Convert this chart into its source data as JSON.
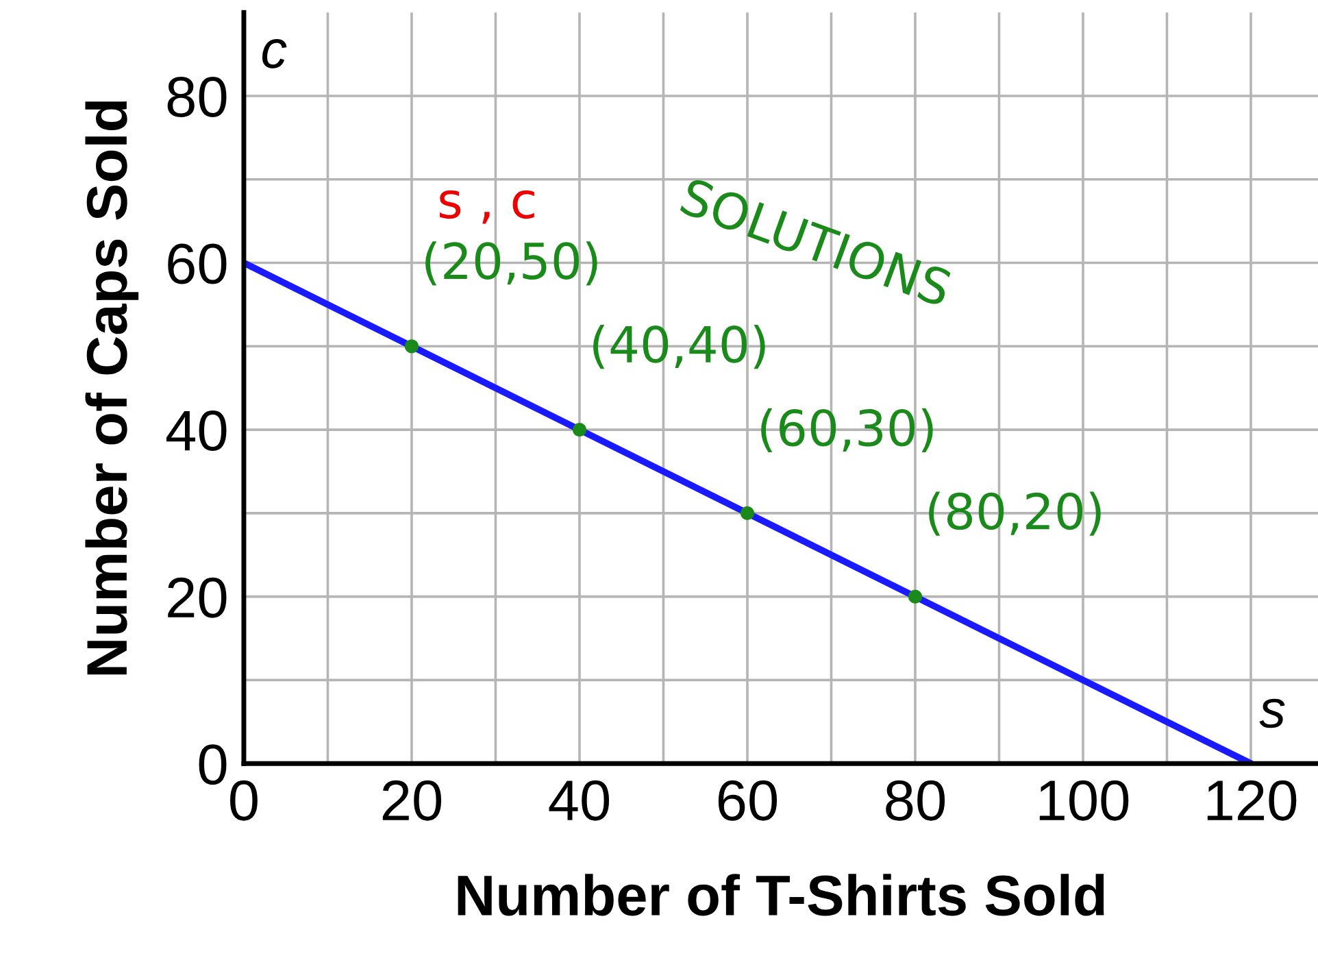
{
  "chart_data": {
    "type": "line",
    "xlabel": "Number of T-Shirts Sold",
    "ylabel": "Number of Caps Sold",
    "series": [
      {
        "color": "#1a1aff",
        "x": [
          0,
          120
        ],
        "values": [
          60,
          0
        ]
      },
      {
        "type": "scatter",
        "marker": "circle",
        "color": "#1a8a1a",
        "x": [
          20,
          40,
          60,
          80
        ],
        "values": [
          50,
          40,
          30,
          20
        ]
      }
    ],
    "annotations": [
      "c",
      "s",
      "s , c",
      "SOLUTIONS",
      {
        "text": "(20,50)",
        "x": 20,
        "y": 50
      },
      {
        "text": "(40,40)",
        "x": 40,
        "y": 40
      },
      {
        "text": "(60,30)",
        "x": 60,
        "y": 30
      },
      {
        "text": "(80,20)",
        "x": 80,
        "y": 20
      }
    ],
    "xlim": [
      0,
      128
    ],
    "ylim": [
      0,
      90
    ],
    "xticks": [
      0,
      {
        "value": 10,
        "label": null
      },
      20,
      {
        "value": 30,
        "label": null
      },
      40,
      {
        "value": 50,
        "label": null
      },
      60,
      {
        "value": 70,
        "label": null
      },
      80,
      {
        "value": 90,
        "label": null
      },
      100,
      {
        "value": 110,
        "label": null
      },
      120
    ],
    "yticks": [
      0,
      {
        "value": 10,
        "label": null
      },
      20,
      {
        "value": 30,
        "label": null
      },
      40,
      {
        "value": 50,
        "label": null
      },
      60,
      {
        "value": 70,
        "label": null
      },
      80
    ],
    "grid": true,
    "marker": "none",
    "line_style": "solid"
  }
}
